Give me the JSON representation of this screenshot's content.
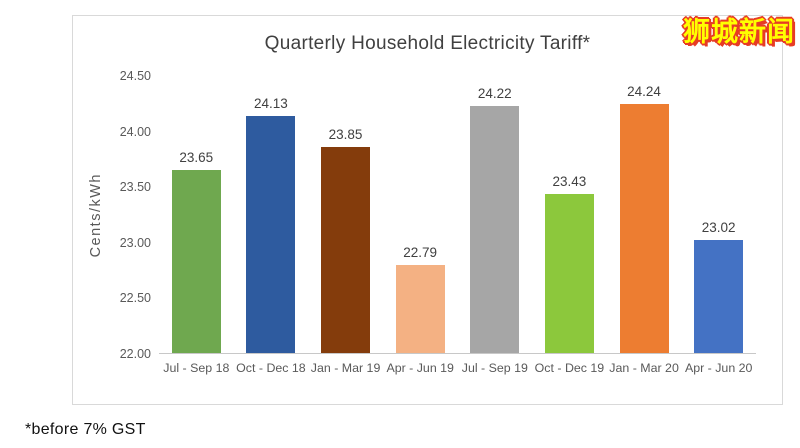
{
  "page": {
    "background": "#ffffff"
  },
  "badge": {
    "text": "狮城新闻",
    "text_color": "#ffff00",
    "outline_color": "#e73c25"
  },
  "footnote": "*before 7% GST",
  "chart_data": {
    "type": "bar",
    "title": "Quarterly Household Electricity Tariff*",
    "xlabel": "",
    "ylabel": "Cents/kWh",
    "categories": [
      "Jul - Sep 18",
      "Oct - Dec 18",
      "Jan - Mar 19",
      "Apr - Jun 19",
      "Jul - Sep 19",
      "Oct - Dec 19",
      "Jan - Mar 20",
      "Apr - Jun 20"
    ],
    "values": [
      23.65,
      24.13,
      23.85,
      22.79,
      24.22,
      23.43,
      24.24,
      23.02
    ],
    "data_labels": [
      "23.65",
      "24.13",
      "23.85",
      "22.79",
      "24.22",
      "23.43",
      "24.24",
      "23.02"
    ],
    "bar_colors": [
      "#6FA84F",
      "#2E5B9F",
      "#843C0C",
      "#F4B183",
      "#A6A6A6",
      "#8CC83C",
      "#ED7D31",
      "#4472C4"
    ],
    "ylim": [
      22.0,
      24.5
    ],
    "yticks": [
      "24.50",
      "24.00",
      "23.50",
      "23.00",
      "22.50",
      "22.00"
    ],
    "grid": false,
    "legend": "none",
    "axis_label_color": "#595959",
    "value_label_color": "#404040",
    "baseline_color": "#c8c8c8"
  }
}
